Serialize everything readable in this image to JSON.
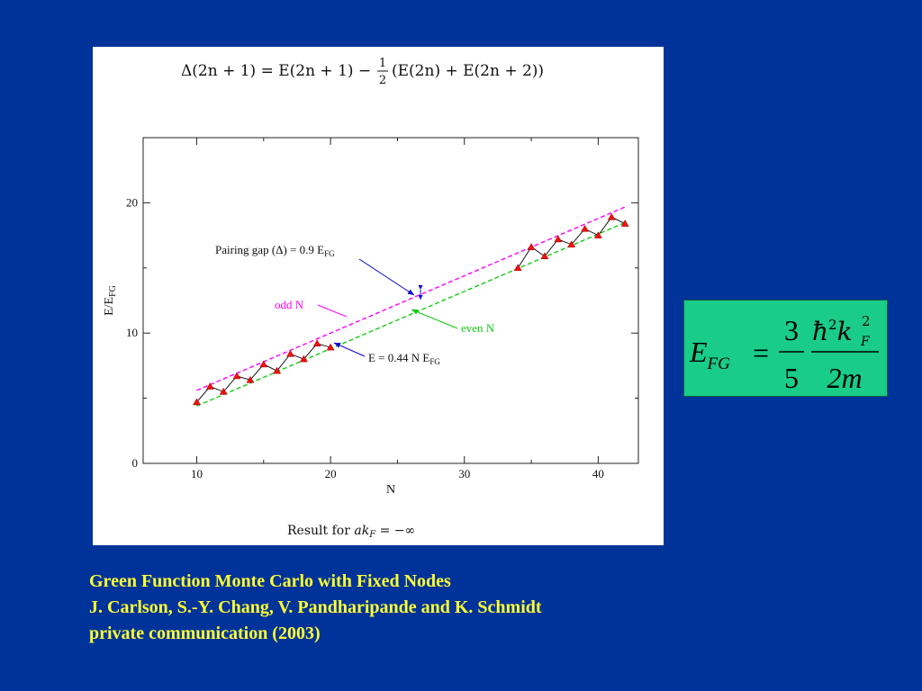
{
  "colors": {
    "background": "#003399",
    "panel": "#ffffff",
    "formula_box": "#19cc88",
    "caption_text": "#ffff33",
    "marker": "#ee1111",
    "odd_line": "#ff00ff",
    "even_line": "#11cc11",
    "arrow": "#0000cc",
    "green_arrow": "#11cc11",
    "sawtooth": "#000000"
  },
  "plot_formula": {
    "lhs": "Δ(2n + 1) = E(2n + 1) −",
    "frac_num": "1",
    "frac_den": "2",
    "rhs": "(E(2n) + E(2n + 2))"
  },
  "result_text": {
    "prefix": "Result for ",
    "var": "ak",
    "sub": "F",
    "suffix": " = −∞"
  },
  "chart_data": {
    "type": "scatter",
    "xlabel": "N",
    "ylabel": "E/E",
    "ylabel_sub": "FG",
    "xlim": [
      6,
      43
    ],
    "ylim": [
      0,
      25
    ],
    "xticks": [
      10,
      20,
      30,
      40
    ],
    "yticks": [
      0,
      10,
      20
    ],
    "grid": false,
    "series": [
      {
        "x": [
          10,
          11,
          12,
          13,
          14,
          15,
          16,
          17,
          18,
          19,
          20,
          34,
          35,
          36,
          37,
          38,
          39,
          40,
          41,
          42
        ],
        "values": [
          4.7,
          5.9,
          5.5,
          6.7,
          6.4,
          7.6,
          7.1,
          8.4,
          8.0,
          9.2,
          8.9,
          15.0,
          16.6,
          15.9,
          17.2,
          16.8,
          18.0,
          17.5,
          18.9,
          18.4
        ]
      }
    ],
    "lines": [
      {
        "label": "odd N",
        "slope": 0.44,
        "intercept": 1.2,
        "x_range": [
          10,
          42
        ],
        "style": "dashed"
      },
      {
        "label": "even N",
        "slope": 0.44,
        "intercept": 0.0,
        "x_range": [
          10,
          42
        ],
        "style": "dashed"
      }
    ],
    "annotations": [
      {
        "text": "Pairing gap (Δ) = 0.9 E",
        "sub": "FG"
      },
      {
        "text": "odd N"
      },
      {
        "text": "even N"
      },
      {
        "text": "E = 0.44 N E",
        "sub": "FG"
      }
    ]
  },
  "formula": {
    "lhs": "E",
    "lhs_sub": "FG",
    "eq": "=",
    "num": "3",
    "den": "5",
    "hbar": "ħ",
    "hbar_sup": "2",
    "k": "k",
    "k_sup": "2",
    "k_sub": "F",
    "den2": "2m"
  },
  "caption": {
    "line1": "Green Function Monte Carlo with Fixed Nodes",
    "line2": "J. Carlson, S.-Y. Chang, V. Pandharipande and K. Schmidt",
    "line3": "private communication (2003)"
  }
}
